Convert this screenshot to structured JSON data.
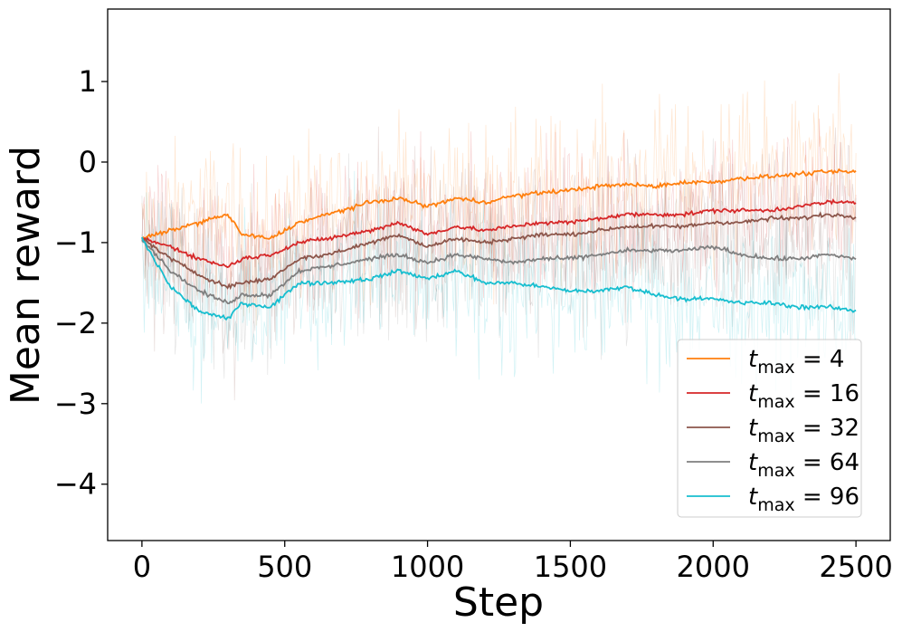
{
  "chart_data": {
    "type": "line",
    "title": "",
    "xlabel": "Step",
    "ylabel": "Mean reward",
    "xlim": [
      -120,
      2620
    ],
    "ylim": [
      -4.7,
      1.9
    ],
    "x_ticks": [
      0,
      500,
      1000,
      1500,
      2000,
      2500
    ],
    "x_tick_labels": [
      "0",
      "500",
      "1000",
      "1500",
      "2000",
      "2500"
    ],
    "y_ticks": [
      -4,
      -3,
      -2,
      -1,
      0,
      1
    ],
    "y_tick_labels": [
      "−4",
      "−3",
      "−2",
      "−1",
      "0",
      "1"
    ],
    "legend_position": "lower-right",
    "legend_var": "t",
    "legend_sub": "max",
    "legend_eq": "=",
    "noise_band_note": "translucent per-step raw reward traces behind each smoothed line",
    "series": [
      {
        "name": "t_max = 4",
        "legend_value": "4",
        "color": "#ff7f0e",
        "x": [
          0,
          100,
          200,
          300,
          350,
          450,
          550,
          650,
          800,
          900,
          1000,
          1100,
          1200,
          1300,
          1400,
          1500,
          1600,
          1700,
          1800,
          1900,
          2000,
          2100,
          2200,
          2300,
          2400,
          2500
        ],
        "y": [
          -0.95,
          -0.85,
          -0.75,
          -0.65,
          -0.9,
          -0.95,
          -0.75,
          -0.65,
          -0.5,
          -0.45,
          -0.55,
          -0.45,
          -0.5,
          -0.42,
          -0.38,
          -0.35,
          -0.3,
          -0.28,
          -0.3,
          -0.25,
          -0.25,
          -0.2,
          -0.18,
          -0.15,
          -0.12,
          -0.12
        ]
      },
      {
        "name": "t_max = 16",
        "legend_value": "16",
        "color": "#d62728",
        "x": [
          0,
          100,
          200,
          300,
          350,
          450,
          550,
          650,
          800,
          900,
          1000,
          1100,
          1200,
          1300,
          1400,
          1500,
          1600,
          1700,
          1800,
          1900,
          2000,
          2100,
          2200,
          2300,
          2400,
          2500
        ],
        "y": [
          -0.95,
          -1.05,
          -1.2,
          -1.3,
          -1.2,
          -1.15,
          -1.0,
          -0.95,
          -0.85,
          -0.75,
          -0.9,
          -0.8,
          -0.85,
          -0.8,
          -0.75,
          -0.75,
          -0.7,
          -0.65,
          -0.65,
          -0.65,
          -0.6,
          -0.6,
          -0.6,
          -0.55,
          -0.5,
          -0.5
        ]
      },
      {
        "name": "t_max = 32",
        "legend_value": "32",
        "color": "#8c564b",
        "x": [
          0,
          100,
          200,
          300,
          350,
          450,
          550,
          650,
          800,
          900,
          1000,
          1100,
          1200,
          1300,
          1400,
          1500,
          1600,
          1700,
          1800,
          1900,
          2000,
          2100,
          2200,
          2300,
          2400,
          2500
        ],
        "y": [
          -0.95,
          -1.2,
          -1.4,
          -1.55,
          -1.5,
          -1.45,
          -1.2,
          -1.15,
          -1.0,
          -0.9,
          -1.05,
          -0.95,
          -1.0,
          -0.95,
          -0.9,
          -0.9,
          -0.85,
          -0.8,
          -0.8,
          -0.8,
          -0.75,
          -0.75,
          -0.7,
          -0.7,
          -0.65,
          -0.68
        ]
      },
      {
        "name": "t_max = 64",
        "legend_value": "64",
        "color": "#7f7f7f",
        "x": [
          0,
          100,
          200,
          300,
          350,
          450,
          550,
          650,
          800,
          900,
          1000,
          1100,
          1200,
          1300,
          1400,
          1500,
          1600,
          1700,
          1800,
          1900,
          2000,
          2100,
          2200,
          2300,
          2400,
          2500
        ],
        "y": [
          -0.95,
          -1.35,
          -1.6,
          -1.75,
          -1.65,
          -1.65,
          -1.35,
          -1.3,
          -1.2,
          -1.15,
          -1.25,
          -1.15,
          -1.2,
          -1.25,
          -1.2,
          -1.2,
          -1.15,
          -1.1,
          -1.1,
          -1.1,
          -1.05,
          -1.15,
          -1.2,
          -1.2,
          -1.15,
          -1.2
        ]
      },
      {
        "name": "t_max = 96",
        "legend_value": "96",
        "color": "#17becf",
        "x": [
          0,
          100,
          200,
          300,
          350,
          450,
          550,
          650,
          800,
          900,
          1000,
          1100,
          1200,
          1300,
          1400,
          1500,
          1600,
          1700,
          1800,
          1900,
          2000,
          2100,
          2200,
          2300,
          2400,
          2500
        ],
        "y": [
          -0.95,
          -1.55,
          -1.85,
          -1.95,
          -1.75,
          -1.8,
          -1.5,
          -1.5,
          -1.45,
          -1.35,
          -1.45,
          -1.35,
          -1.5,
          -1.5,
          -1.55,
          -1.6,
          -1.6,
          -1.55,
          -1.65,
          -1.7,
          -1.7,
          -1.75,
          -1.75,
          -1.8,
          -1.8,
          -1.85
        ]
      }
    ]
  }
}
